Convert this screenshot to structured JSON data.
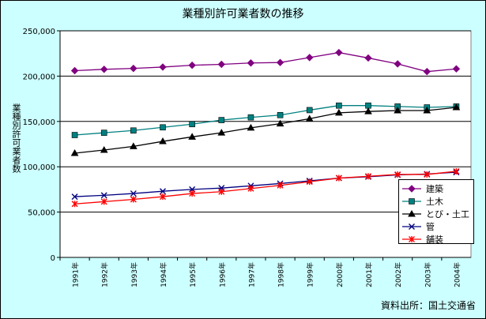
{
  "chart_data": {
    "type": "line",
    "title": "業種別許可業者数の推移",
    "ylabel": "業種別許可業者数",
    "xlabel": "",
    "ylim": [
      0,
      250000
    ],
    "yticks": [
      "0",
      "50,000",
      "100,000",
      "150,000",
      "200,000",
      "250,000"
    ],
    "grid": true,
    "legend_position": "bottom-right",
    "categories": [
      "1991年",
      "1992年",
      "1993年",
      "1994年",
      "1995年",
      "1996年",
      "1997年",
      "1998年",
      "1999年",
      "2000年",
      "2001年",
      "2002年",
      "2003年",
      "2004年"
    ],
    "series": [
      {
        "name": "建築",
        "color": "#800080",
        "marker": "diamond",
        "values": [
          206000,
          207500,
          208500,
          210000,
          212000,
          213000,
          214500,
          215000,
          220500,
          226000,
          220000,
          213500,
          205000,
          208000
        ]
      },
      {
        "name": "土木",
        "color": "#008080",
        "marker": "square",
        "values": [
          135000,
          137500,
          140000,
          143500,
          147000,
          151500,
          154500,
          157000,
          162500,
          167500,
          167500,
          166500,
          165500,
          166500
        ]
      },
      {
        "name": "とび・土工",
        "color": "#000000",
        "marker": "triangle",
        "values": [
          115000,
          118500,
          122500,
          128000,
          133000,
          137500,
          143000,
          147500,
          153000,
          159500,
          161000,
          162000,
          162000,
          165500
        ]
      },
      {
        "name": "管",
        "color": "#000080",
        "marker": "x",
        "values": [
          67000,
          68500,
          70500,
          73000,
          75000,
          76500,
          79000,
          81500,
          84500,
          87500,
          89000,
          91000,
          92000,
          94000
        ]
      },
      {
        "name": "舗装",
        "color": "#ff0000",
        "marker": "star",
        "values": [
          59000,
          61500,
          64000,
          67000,
          70500,
          72500,
          76000,
          79500,
          83500,
          87500,
          89500,
          91500,
          91500,
          95000
        ]
      }
    ]
  },
  "source": "資料出所：国土交通省"
}
